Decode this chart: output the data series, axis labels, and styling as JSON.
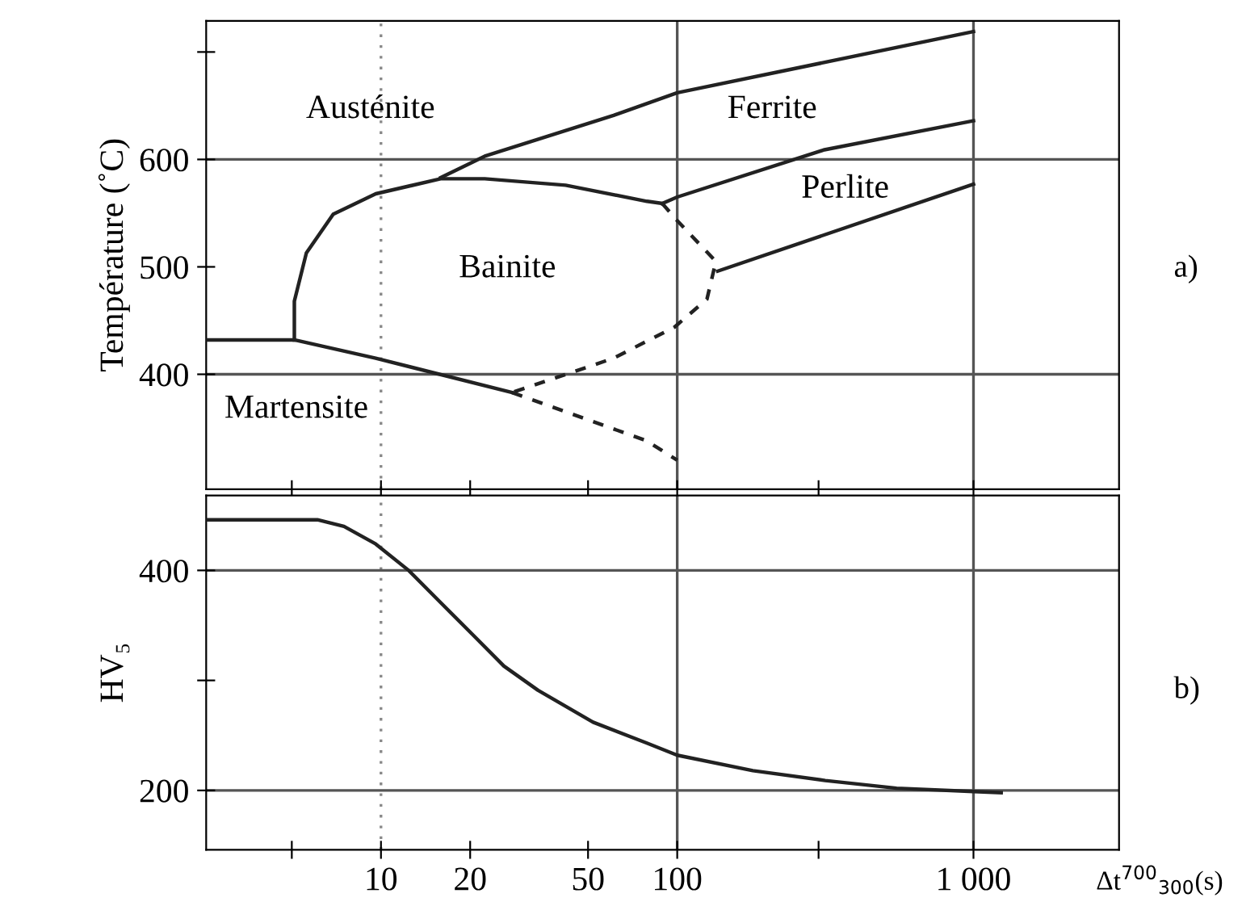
{
  "chart_data": [
    {
      "type": "line",
      "ylabel": "Température (˚C)",
      "log": "x",
      "tick_labels": "y",
      "line_style": "solid",
      "marker": "none",
      "xlim": [
        2.57,
        3100
      ],
      "xticks": [
        {
          "value": 5,
          "label": null
        },
        {
          "value": 10,
          "label": null
        },
        {
          "value": 20,
          "label": null
        },
        {
          "value": 50,
          "label": null
        },
        {
          "value": 100,
          "label": null
        },
        {
          "value": 300,
          "label": null
        },
        {
          "value": 1000,
          "label": null
        }
      ],
      "ylim": [
        293,
        729
      ],
      "yticks": [
        400,
        500,
        600,
        {
          "value": 700,
          "label": null
        }
      ],
      "ref_lines": [
        {
          "axis": "x",
          "value": 10,
          "line_style": "dotted",
          "color": "#888888"
        },
        {
          "axis": "x",
          "value": 100,
          "color": "#555555"
        },
        {
          "axis": "x",
          "value": 1000,
          "color": "#555555"
        },
        {
          "axis": "y",
          "value": 400,
          "color": "#555555"
        },
        {
          "axis": "y",
          "value": 600,
          "color": "#555555"
        }
      ],
      "series": [
        {
          "color": "#222222",
          "x": [
            15.9,
            22.4,
            61,
            100,
            1000
          ],
          "values": [
            583,
            603,
            641,
            662,
            719
          ]
        },
        {
          "color": "#222222",
          "x": [
            5.1,
            5.1,
            5.6,
            6.9,
            9.6,
            15.9,
            22.4,
            42,
            79,
            89
          ],
          "values": [
            432,
            468,
            513,
            549,
            568,
            582,
            582,
            576,
            561,
            559
          ]
        },
        {
          "color": "#222222",
          "x": [
            89,
            100,
            314,
            1000
          ],
          "values": [
            559,
            565,
            609,
            636
          ]
        },
        {
          "color": "#222222",
          "x": [
            137,
            1000
          ],
          "values": [
            496,
            577
          ]
        },
        {
          "color": "#222222",
          "x": [
            2.57,
            5.1,
            9.6,
            27.7
          ],
          "values": [
            432,
            432,
            415,
            383
          ]
        },
        {
          "color": "#222222",
          "line_style": "dashed",
          "x": [
            89,
            100,
            120,
            135,
            126,
            98,
            61,
            27.7
          ],
          "values": [
            559,
            543,
            520,
            505,
            470,
            444,
            415,
            383
          ]
        },
        {
          "color": "#222222",
          "line_style": "dashed",
          "x": [
            27.7,
            79,
            100
          ],
          "values": [
            383,
            338,
            320
          ]
        }
      ],
      "annotations": [
        "Austénite",
        "Ferrite",
        "Perlite",
        "Bainite",
        "Martensite",
        "a)"
      ]
    },
    {
      "type": "line",
      "annotations": [
        "b)"
      ],
      "ylabel": "HV₅",
      "xlabel": "Δt$^{700}$$_{300}$(s)",
      "log": "x",
      "line_style": "solid",
      "marker": "none",
      "xlim": [
        2.57,
        3100
      ],
      "xticks": [
        {
          "value": 5,
          "label": null
        },
        10,
        20,
        50,
        100,
        {
          "value": 300,
          "label": null
        },
        {
          "value": 1000,
          "label": "1 000"
        }
      ],
      "ylim": [
        146,
        468
      ],
      "yticks": [
        200,
        {
          "value": 300,
          "label": null
        },
        400
      ],
      "ref_lines": [
        {
          "axis": "x",
          "value": 10,
          "line_style": "dotted",
          "color": "#888888"
        },
        {
          "axis": "x",
          "value": 100,
          "color": "#555555"
        },
        {
          "axis": "x",
          "value": 1000,
          "color": "#555555"
        },
        {
          "axis": "y",
          "value": 200,
          "color": "#555555"
        },
        {
          "axis": "y",
          "value": 400,
          "color": "#555555"
        }
      ],
      "series": [
        {
          "color": "#222222",
          "x": [
            2.57,
            6.1,
            7.5,
            9.6,
            12.4,
            16,
            20.5,
            26,
            33.9,
            52,
            79,
            100,
            180,
            316,
            550,
            1000,
            1240
          ],
          "values": [
            446,
            446,
            440,
            424,
            400,
            370,
            341,
            313,
            291,
            262,
            243,
            232,
            218,
            209,
            202,
            199,
            198
          ]
        }
      ]
    }
  ]
}
